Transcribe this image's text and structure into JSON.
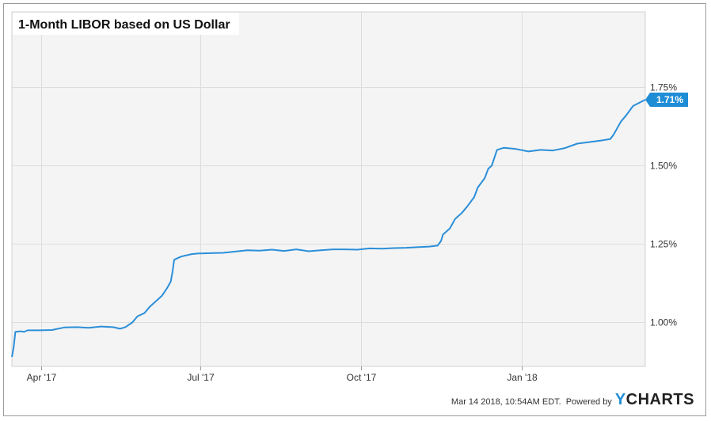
{
  "chart_data": {
    "type": "line",
    "title": "1-Month LIBOR based on US Dollar",
    "xlabel": "",
    "ylabel": "",
    "x_ticks": [
      "Apr '17",
      "Jul '17",
      "Oct '17",
      "Jan '18"
    ],
    "y_ticks": [
      "1.00%",
      "1.25%",
      "1.50%",
      "1.75%"
    ],
    "ylim": [
      0.86,
      1.99
    ],
    "xlim": [
      "2017-03-15",
      "2018-03-13"
    ],
    "grid": true,
    "last_value_label": "1.71%",
    "series": [
      {
        "name": "",
        "color": "#2b8fd9",
        "points": [
          [
            "2017-03-15",
            0.89
          ],
          [
            "2017-03-16",
            0.92
          ],
          [
            "2017-03-17",
            0.97
          ],
          [
            "2017-03-20",
            0.972
          ],
          [
            "2017-03-22",
            0.97
          ],
          [
            "2017-03-24",
            0.975
          ],
          [
            "2017-03-31",
            0.975
          ],
          [
            "2017-04-07",
            0.976
          ],
          [
            "2017-04-14",
            0.984
          ],
          [
            "2017-04-21",
            0.985
          ],
          [
            "2017-04-28",
            0.983
          ],
          [
            "2017-05-05",
            0.987
          ],
          [
            "2017-05-12",
            0.985
          ],
          [
            "2017-05-16",
            0.98
          ],
          [
            "2017-05-19",
            0.985
          ],
          [
            "2017-05-23",
            1.0
          ],
          [
            "2017-05-26",
            1.02
          ],
          [
            "2017-05-30",
            1.03
          ],
          [
            "2017-06-02",
            1.05
          ],
          [
            "2017-06-06",
            1.07
          ],
          [
            "2017-06-09",
            1.085
          ],
          [
            "2017-06-12",
            1.11
          ],
          [
            "2017-06-14",
            1.13
          ],
          [
            "2017-06-15",
            1.16
          ],
          [
            "2017-06-16",
            1.2
          ],
          [
            "2017-06-20",
            1.21
          ],
          [
            "2017-06-26",
            1.218
          ],
          [
            "2017-06-30",
            1.22
          ],
          [
            "2017-07-07",
            1.221
          ],
          [
            "2017-07-14",
            1.222
          ],
          [
            "2017-07-21",
            1.226
          ],
          [
            "2017-07-28",
            1.23
          ],
          [
            "2017-08-04",
            1.229
          ],
          [
            "2017-08-11",
            1.232
          ],
          [
            "2017-08-18",
            1.228
          ],
          [
            "2017-08-25",
            1.233
          ],
          [
            "2017-09-01",
            1.227
          ],
          [
            "2017-09-08",
            1.23
          ],
          [
            "2017-09-15",
            1.233
          ],
          [
            "2017-09-22",
            1.233
          ],
          [
            "2017-09-29",
            1.232
          ],
          [
            "2017-10-06",
            1.236
          ],
          [
            "2017-10-13",
            1.235
          ],
          [
            "2017-10-20",
            1.237
          ],
          [
            "2017-10-27",
            1.238
          ],
          [
            "2017-11-03",
            1.24
          ],
          [
            "2017-11-09",
            1.242
          ],
          [
            "2017-11-14",
            1.245
          ],
          [
            "2017-11-16",
            1.26
          ],
          [
            "2017-11-17",
            1.28
          ],
          [
            "2017-11-21",
            1.3
          ],
          [
            "2017-11-24",
            1.33
          ],
          [
            "2017-11-28",
            1.35
          ],
          [
            "2017-12-01",
            1.37
          ],
          [
            "2017-12-05",
            1.4
          ],
          [
            "2017-12-07",
            1.43
          ],
          [
            "2017-12-11",
            1.46
          ],
          [
            "2017-12-13",
            1.49
          ],
          [
            "2017-12-15",
            1.5
          ],
          [
            "2017-12-18",
            1.55
          ],
          [
            "2017-12-22",
            1.557
          ],
          [
            "2017-12-29",
            1.553
          ],
          [
            "2018-01-05",
            1.545
          ],
          [
            "2018-01-12",
            1.55
          ],
          [
            "2018-01-19",
            1.548
          ],
          [
            "2018-01-26",
            1.556
          ],
          [
            "2018-02-02",
            1.57
          ],
          [
            "2018-02-09",
            1.575
          ],
          [
            "2018-02-16",
            1.58
          ],
          [
            "2018-02-21",
            1.585
          ],
          [
            "2018-02-23",
            1.6
          ],
          [
            "2018-02-27",
            1.64
          ],
          [
            "2018-03-02",
            1.66
          ],
          [
            "2018-03-06",
            1.69
          ],
          [
            "2018-03-13",
            1.71
          ]
        ]
      }
    ]
  },
  "footer": {
    "timestamp": "Mar 14 2018, 10:54AM EDT.",
    "powered_by": "Powered by",
    "brand_initial": "Y",
    "brand_rest": "CHARTS"
  },
  "colors": {
    "line": "#2b8fd9",
    "badge": "#1f8dd6",
    "plot_bg": "#f4f4f4",
    "grid": "#dddddd"
  }
}
